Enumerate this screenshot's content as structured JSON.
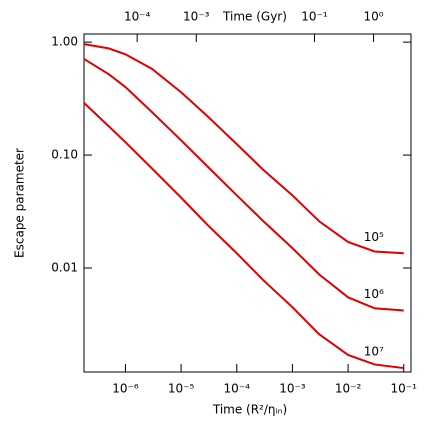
{
  "chart_data": {
    "type": "line",
    "xlabel": "Time (R²/ηᵢₙ)",
    "ylabel": "Escape parameter",
    "x2label": "Time (Gyr)",
    "log_x": true,
    "log_y": true,
    "xlim": [
      1.8e-07,
      0.135
    ],
    "ylim": [
      0.0012,
      1.18
    ],
    "x2lim": [
      1.26e-05,
      4.3
    ],
    "xticks": [
      {
        "value": 1e-06,
        "label": "10⁻⁶"
      },
      {
        "value": 1e-05,
        "label": "10⁻⁵"
      },
      {
        "value": 0.0001,
        "label": "10⁻⁴"
      },
      {
        "value": 0.001,
        "label": "10⁻³"
      },
      {
        "value": 0.01,
        "label": "10⁻²"
      },
      {
        "value": 0.1,
        "label": "10⁻¹"
      }
    ],
    "x2ticks": [
      {
        "value": 0.0001,
        "label": "10⁻⁴"
      },
      {
        "value": 0.001,
        "label": "10⁻³"
      },
      {
        "value": 0.1,
        "label": "10⁻¹"
      },
      {
        "value": 1,
        "label": "10⁰"
      }
    ],
    "yticks": [
      {
        "value": 1,
        "label": "1.00"
      },
      {
        "value": 0.1,
        "label": "0.10"
      },
      {
        "value": 0.01,
        "label": "0.01"
      }
    ],
    "x": [
      1.8e-07,
      5e-07,
      1e-06,
      3e-06,
      1e-05,
      3e-05,
      0.0001,
      0.0003,
      0.001,
      0.003,
      0.01,
      0.03,
      0.1
    ],
    "series": [
      {
        "name": "10⁵",
        "color": "#e00000",
        "values": [
          0.96,
          0.88,
          0.78,
          0.58,
          0.36,
          0.22,
          0.125,
          0.074,
          0.044,
          0.026,
          0.017,
          0.014,
          0.0135
        ]
      },
      {
        "name": "10⁶",
        "color": "#e00000",
        "values": [
          0.71,
          0.52,
          0.4,
          0.24,
          0.135,
          0.079,
          0.044,
          0.026,
          0.015,
          0.0088,
          0.0055,
          0.0044,
          0.0042
        ]
      },
      {
        "name": "10⁷",
        "color": "#e00000",
        "values": [
          0.29,
          0.18,
          0.13,
          0.076,
          0.042,
          0.024,
          0.0135,
          0.0078,
          0.0045,
          0.0026,
          0.0017,
          0.0014,
          0.0013
        ]
      }
    ]
  }
}
